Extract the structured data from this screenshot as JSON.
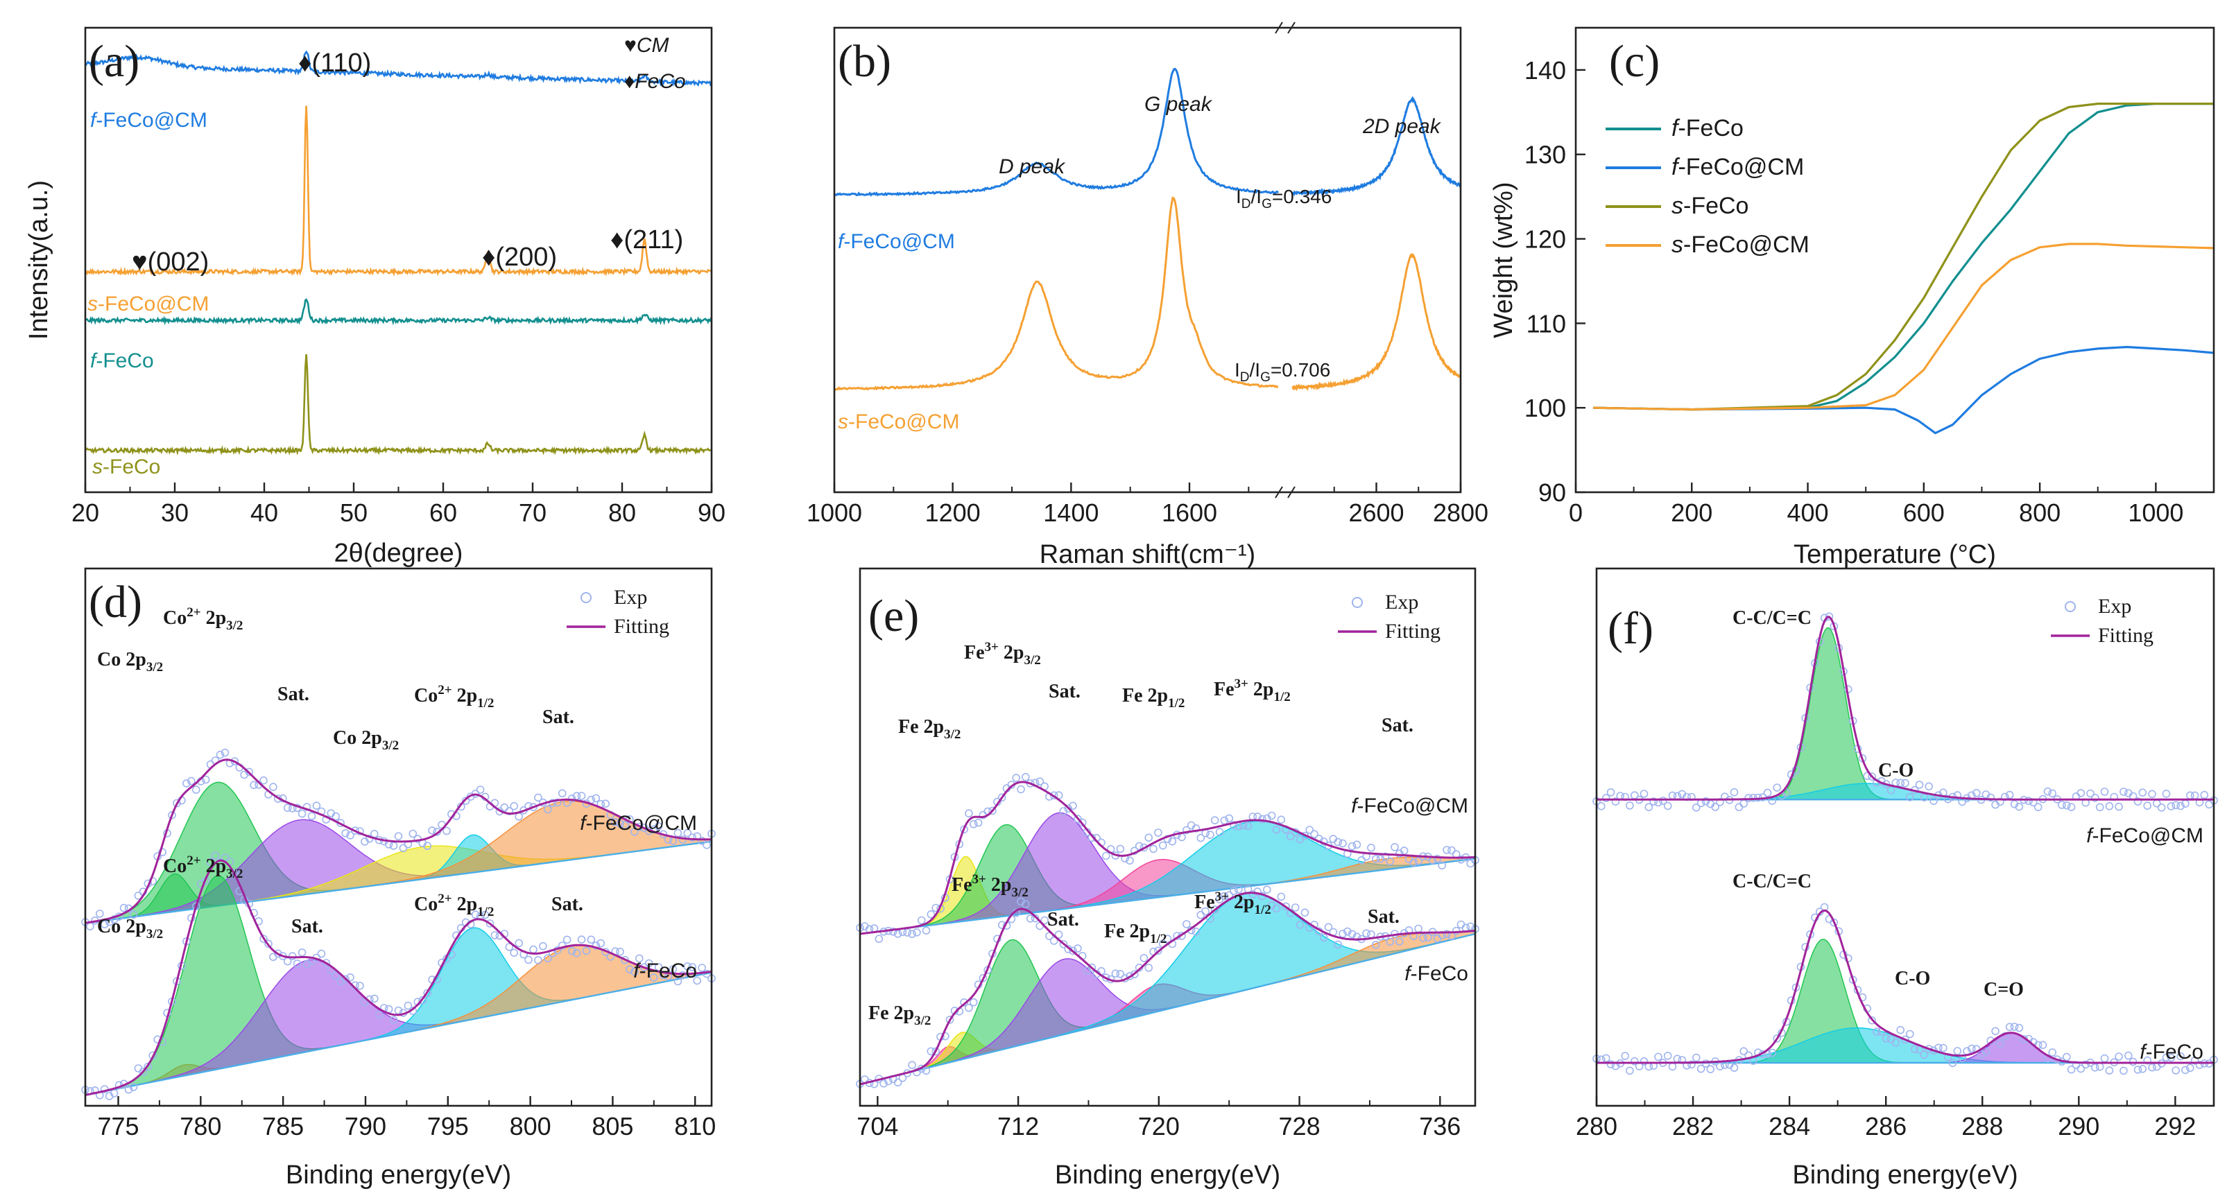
{
  "colors": {
    "blue": "#1f7ce0",
    "orange": "#f5a032",
    "teal": "#138f8f",
    "olive": "#8f921a",
    "purple": "#a1249b",
    "fit_green": "#22c653",
    "fit_violet": "#9a49e8",
    "fit_cyan": "#13cde8",
    "fit_orange": "#f5913d",
    "fit_yellow": "#eae514",
    "fit_pink": "#f2449a",
    "fit_lightblue": "#4aaee8"
  },
  "chart_data": [
    {
      "id": "a",
      "type": "line",
      "panel_label": "(a)",
      "xlabel": "2θ(degree)",
      "ylabel": "Intensity(a.u.)",
      "xlim": [
        20,
        90
      ],
      "xticks": [
        20,
        30,
        40,
        50,
        60,
        70,
        80,
        90
      ],
      "legend": [
        "♥CM",
        "♦FeCo"
      ],
      "annotations": [
        "♦(110)",
        "♥(002)",
        "♦(200)",
        "♦(211)"
      ],
      "series": [
        {
          "name": "f-FeCo@CM",
          "prefix": "f",
          "suffix": "-FeCo@CM",
          "color": "#1f7ce0",
          "baseline": 0.88,
          "tilt": 0.04,
          "hump": 0.02,
          "peaks": [
            [
              44.7,
              0.045,
              0.25
            ],
            [
              65.0,
              0.006,
              0.3
            ],
            [
              82.5,
              0.012,
              0.3
            ]
          ]
        },
        {
          "name": "s-FeCo@CM",
          "prefix": "s",
          "suffix": "-FeCo@CM",
          "color": "#f5a032",
          "baseline": 0.475,
          "tilt": 0.0,
          "hump": 0.0,
          "peaks": [
            [
              44.7,
              0.36,
              0.18
            ],
            [
              65.0,
              0.045,
              0.22
            ],
            [
              82.5,
              0.07,
              0.22
            ]
          ]
        },
        {
          "name": "f-FeCo",
          "prefix": "f",
          "suffix": "-FeCo",
          "color": "#138f8f",
          "baseline": 0.37,
          "tilt": 0.0,
          "hump": 0.0,
          "peaks": [
            [
              44.7,
              0.045,
              0.25
            ],
            [
              65.0,
              0.006,
              0.3
            ],
            [
              82.5,
              0.012,
              0.3
            ]
          ]
        },
        {
          "name": "s-FeCo",
          "prefix": "s",
          "suffix": "-FeCo",
          "color": "#8f921a",
          "baseline": 0.09,
          "tilt": 0.0,
          "hump": 0.0,
          "peaks": [
            [
              44.7,
              0.21,
              0.18
            ],
            [
              65.0,
              0.015,
              0.22
            ],
            [
              82.5,
              0.033,
              0.22
            ]
          ]
        }
      ]
    },
    {
      "id": "b",
      "type": "line",
      "panel_label": "(b)",
      "xlabel": "Raman shift(cm⁻¹)",
      "ylabel": "",
      "xlim": [
        1000,
        2800
      ],
      "xticks": [
        1000,
        1200,
        1400,
        1600,
        2600,
        2800
      ],
      "axis_break": [
        1750,
        2400
      ],
      "peak_labels": [
        "D peak",
        "G peak",
        "2D peak"
      ],
      "ratio_labels": [
        {
          "prefix": "I",
          "sub1": "D",
          "mid": "/I",
          "sub2": "G",
          "value": "=0.346"
        },
        {
          "prefix": "I",
          "sub1": "D",
          "mid": "/I",
          "sub2": "G",
          "value": "=0.706"
        }
      ],
      "series": [
        {
          "name": "f-FeCo@CM",
          "prefix": "f",
          "suffix": "-FeCo@CM",
          "color": "#1f7ce0",
          "baseline": 0.64,
          "peaks": [
            [
              1343,
              0.065,
              40
            ],
            [
              1575,
              0.27,
              22
            ],
            [
              2685,
              0.205,
              38
            ]
          ]
        },
        {
          "name": "s-FeCo@CM",
          "prefix": "s",
          "suffix": "-FeCo@CM",
          "color": "#f5a032",
          "baseline": 0.22,
          "peaks": [
            [
              1343,
              0.23,
              33
            ],
            [
              1573,
              0.4,
              18
            ],
            [
              1610,
              0.05,
              18
            ],
            [
              2685,
              0.29,
              38
            ]
          ]
        }
      ]
    },
    {
      "id": "c",
      "type": "line",
      "panel_label": "(c)",
      "xlabel": "Temperature (°C)",
      "ylabel": "Weight (wt%)",
      "xlim": [
        0,
        1100
      ],
      "ylim": [
        90,
        145
      ],
      "xticks": [
        0,
        200,
        400,
        600,
        800,
        1000
      ],
      "yticks": [
        90,
        100,
        110,
        120,
        130,
        140
      ],
      "series": [
        {
          "name": "f-FeCo",
          "prefix": "f",
          "suffix": "-FeCo",
          "color": "#138f8f",
          "x": [
            30,
            200,
            400,
            450,
            500,
            550,
            600,
            650,
            700,
            750,
            800,
            850,
            900,
            950,
            1000,
            1050,
            1100
          ],
          "y": [
            100,
            99.8,
            100,
            100.8,
            103,
            106,
            110,
            115,
            119.5,
            123.5,
            128,
            132.5,
            135,
            135.8,
            136,
            136,
            136
          ]
        },
        {
          "name": "f-FeCo@CM",
          "prefix": "f",
          "suffix": "-FeCo@CM",
          "color": "#1f7ce0",
          "x": [
            30,
            200,
            400,
            500,
            550,
            590,
            620,
            650,
            700,
            750,
            800,
            850,
            900,
            950,
            1000,
            1050,
            1100
          ],
          "y": [
            100,
            99.8,
            99.9,
            100,
            99.8,
            98.5,
            97,
            98,
            101.5,
            104,
            105.8,
            106.6,
            107,
            107.2,
            107,
            106.8,
            106.5
          ]
        },
        {
          "name": "s-FeCo",
          "prefix": "s",
          "suffix": "-FeCo",
          "color": "#8f921a",
          "x": [
            30,
            200,
            400,
            450,
            500,
            550,
            600,
            650,
            700,
            750,
            800,
            850,
            900,
            950,
            1000,
            1050,
            1100
          ],
          "y": [
            100,
            99.8,
            100.2,
            101.5,
            104,
            108,
            113,
            119,
            125,
            130.5,
            134,
            135.6,
            136,
            136,
            136,
            136,
            136
          ]
        },
        {
          "name": "s-FeCo@CM",
          "prefix": "s",
          "suffix": "-FeCo@CM",
          "color": "#f5a032",
          "x": [
            30,
            200,
            400,
            500,
            550,
            600,
            650,
            700,
            750,
            800,
            850,
            900,
            950,
            1000,
            1050,
            1100
          ],
          "y": [
            100,
            99.8,
            100,
            100.3,
            101.5,
            104.5,
            109.5,
            114.5,
            117.5,
            119,
            119.4,
            119.4,
            119.2,
            119.1,
            119,
            118.9
          ]
        }
      ]
    },
    {
      "id": "d",
      "type": "scatter",
      "panel_label": "(d)",
      "xlabel": "Binding energy(eV)",
      "xlim": [
        773,
        811
      ],
      "xticks": [
        775,
        780,
        785,
        790,
        795,
        800,
        805,
        810
      ],
      "legend": [
        "Exp",
        "Fitting"
      ],
      "spectra": [
        {
          "name": "f-FeCo@CM",
          "prefix": "f",
          "suffix": "-FeCo@CM",
          "baseline": 0.34,
          "slope": 0.004,
          "components": [
            [
              778.4,
              0.07,
              0.9,
              "#22c653"
            ],
            [
              781.0,
              0.23,
              2.2,
              "#22c653"
            ],
            [
              786.0,
              0.14,
              3.0,
              "#9a49e8"
            ],
            [
              793.5,
              0.06,
              3.6,
              "#eae514"
            ],
            [
              796.5,
              0.07,
              1.1,
              "#13cde8"
            ],
            [
              802.0,
              0.11,
              3.5,
              "#f5913d"
            ]
          ],
          "labels": [
            "Co 2p3/2",
            "Co2+ 2p3/2",
            "Sat.",
            "Co 2p3/2",
            "Co2+ 2p1/2",
            "Sat."
          ]
        },
        {
          "name": "f-FeCo",
          "prefix": "f",
          "suffix": "-FeCo",
          "baseline": 0.02,
          "slope": 0.006,
          "components": [
            [
              779.0,
              0.02,
              0.9,
              "#f5913d"
            ],
            [
              781.0,
              0.36,
              1.9,
              "#22c653"
            ],
            [
              786.5,
              0.17,
              2.8,
              "#9a49e8"
            ],
            [
              796.5,
              0.17,
              1.9,
              "#13cde8"
            ],
            [
              802.5,
              0.1,
              3.0,
              "#f5913d"
            ]
          ],
          "labels": [
            "Co 2p3/2",
            "Co2+ 2p3/2",
            "Sat.",
            "Co2+ 2p1/2",
            "Sat."
          ]
        }
      ]
    },
    {
      "id": "e",
      "type": "scatter",
      "panel_label": "(e)",
      "xlabel": "Binding energy(eV)",
      "xlim": [
        703,
        738
      ],
      "xticks": [
        704,
        712,
        720,
        728,
        736
      ],
      "legend": [
        "Exp",
        "Fitting"
      ],
      "spectra": [
        {
          "name": "f-FeCo@CM",
          "prefix": "f",
          "suffix": "-FeCo@CM",
          "baseline": 0.32,
          "slope": 0.004,
          "components": [
            [
              709.0,
              0.12,
              0.8,
              "#eae514"
            ],
            [
              711.3,
              0.17,
              1.5,
              "#22c653"
            ],
            [
              714.3,
              0.18,
              2.0,
              "#9a49e8"
            ],
            [
              720.0,
              0.07,
              2.0,
              "#f2449a"
            ],
            [
              725.3,
              0.12,
              3.3,
              "#13cde8"
            ],
            [
              733.0,
              0.02,
              2.5,
              "#f5913d"
            ]
          ],
          "labels": [
            "Fe 2p3/2",
            "Fe3+ 2p3/2",
            "Sat.",
            "Fe 2p1/2",
            "Fe3+ 2p1/2",
            "Sat."
          ]
        },
        {
          "name": "f-FeCo",
          "prefix": "f",
          "suffix": "-FeCo",
          "baseline": 0.04,
          "slope": 0.008,
          "components": [
            [
              708.0,
              0.03,
              0.6,
              "#f2449a"
            ],
            [
              708.8,
              0.05,
              0.8,
              "#eae514"
            ],
            [
              711.6,
              0.2,
              1.5,
              "#22c653"
            ],
            [
              714.6,
              0.14,
              2.0,
              "#9a49e8"
            ],
            [
              719.9,
              0.05,
              1.5,
              "#f2449a"
            ],
            [
              724.8,
              0.18,
              3.2,
              "#13cde8"
            ],
            [
              733.5,
              0.03,
              2.5,
              "#f5913d"
            ]
          ],
          "labels": [
            "Fe 2p3/2",
            "Fe3+ 2p3/2",
            "Sat.",
            "Fe 2p1/2",
            "Fe3+ 2p1/2",
            "Sat."
          ]
        }
      ]
    },
    {
      "id": "f",
      "type": "scatter",
      "panel_label": "(f)",
      "xlabel": "Binding energy(eV)",
      "xlim": [
        280,
        292.8
      ],
      "xticks": [
        280,
        282,
        284,
        286,
        288,
        290,
        292
      ],
      "legend": [
        "Exp",
        "Fitting"
      ],
      "spectra": [
        {
          "name": "f-FeCo@CM",
          "prefix": "f",
          "suffix": "-FeCo@CM",
          "baseline": 0.57,
          "slope": 0.0,
          "components": [
            [
              284.8,
              0.32,
              0.36,
              "#22c653"
            ],
            [
              285.6,
              0.03,
              0.9,
              "#13cde8"
            ]
          ],
          "labels": [
            "C-C/C=C",
            "C-O"
          ]
        },
        {
          "name": "f-FeCo",
          "prefix": "f",
          "suffix": "-FeCo",
          "baseline": 0.08,
          "slope": 0.0,
          "components": [
            [
              284.7,
              0.23,
              0.45,
              "#22c653"
            ],
            [
              285.4,
              0.065,
              1.1,
              "#13cde8"
            ],
            [
              288.6,
              0.055,
              0.45,
              "#9a49e8"
            ]
          ],
          "labels": [
            "C-C/C=C",
            "C-O",
            "C=O"
          ]
        }
      ]
    }
  ]
}
